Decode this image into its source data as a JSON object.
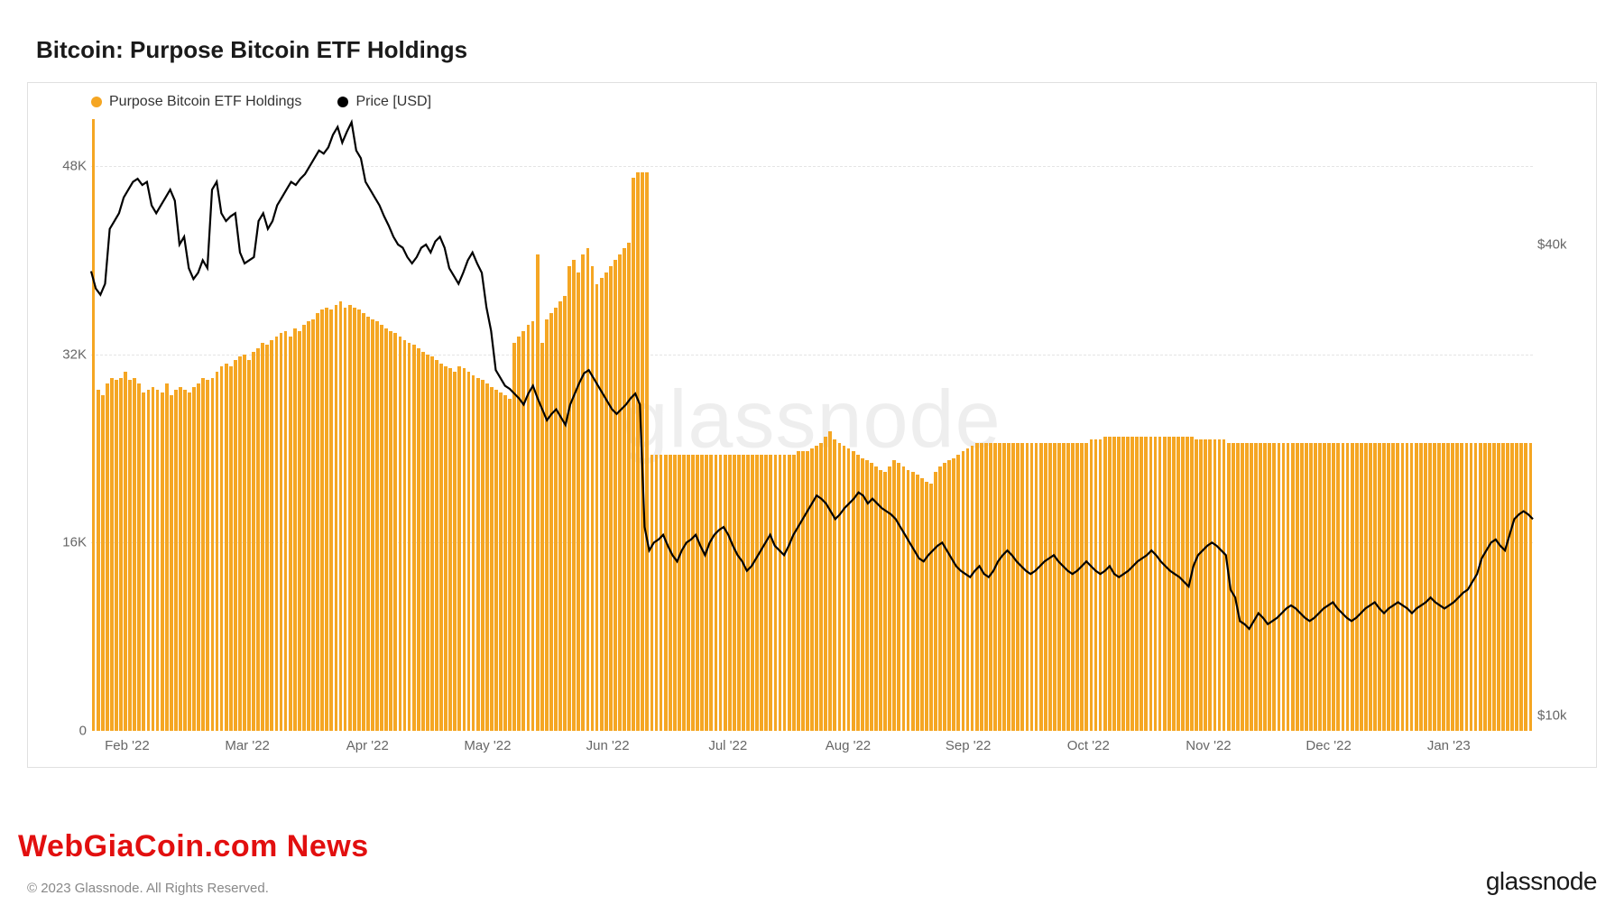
{
  "title": "Bitcoin: Purpose Bitcoin ETF Holdings",
  "legend": {
    "holdings": {
      "label": "Purpose Bitcoin ETF Holdings",
      "color": "#f5a623"
    },
    "price": {
      "label": "Price [USD]",
      "color": "#000000"
    }
  },
  "watermark": "glassnode",
  "overlay_news": "WebGiaCoin.com News",
  "copyright": "© 2023 Glassnode. All Rights Reserved.",
  "brand": "glassnode",
  "chart": {
    "type": "bar+line",
    "background_color": "#ffffff",
    "border_color": "#e0e0e0",
    "grid_color": "#e5e5e5",
    "bar_color": "#f5a623",
    "line_color": "#000000",
    "line_width": 2.2,
    "bar_gap_ratio": 0.25,
    "y_left": {
      "min": 0,
      "max": 52000,
      "ticks": [
        0,
        16000,
        32000,
        48000
      ],
      "tick_labels": [
        "0",
        "16K",
        "32K",
        "48K"
      ],
      "fontsize": 15,
      "color": "#666666"
    },
    "y_right": {
      "min": 9000,
      "max": 48000,
      "ticks": [
        10000,
        40000
      ],
      "tick_labels": [
        "$10k",
        "$40k"
      ],
      "fontsize": 15,
      "color": "#666666"
    },
    "x_labels": [
      "Feb '22",
      "Mar '22",
      "Apr '22",
      "May '22",
      "Jun '22",
      "Jul '22",
      "Aug '22",
      "Sep '22",
      "Oct '22",
      "Nov '22",
      "Dec '22",
      "Jan '23"
    ],
    "holdings": [
      52000,
      29000,
      28500,
      29500,
      30000,
      29800,
      30000,
      30500,
      29800,
      30000,
      29500,
      28800,
      29000,
      29200,
      29000,
      28800,
      29500,
      28500,
      29000,
      29200,
      29000,
      28800,
      29200,
      29500,
      30000,
      29800,
      30000,
      30500,
      31000,
      31200,
      31000,
      31500,
      31800,
      32000,
      31500,
      32200,
      32500,
      33000,
      32800,
      33200,
      33500,
      33800,
      34000,
      33500,
      34200,
      34000,
      34500,
      34800,
      35000,
      35500,
      35800,
      36000,
      35800,
      36200,
      36500,
      36000,
      36200,
      36000,
      35800,
      35500,
      35200,
      35000,
      34800,
      34500,
      34200,
      34000,
      33800,
      33500,
      33200,
      33000,
      32800,
      32500,
      32200,
      32000,
      31800,
      31500,
      31200,
      31000,
      30800,
      30500,
      31000,
      30800,
      30500,
      30200,
      30000,
      29800,
      29500,
      29200,
      29000,
      28800,
      28500,
      28200,
      33000,
      33500,
      34000,
      34500,
      34800,
      40500,
      33000,
      35000,
      35500,
      36000,
      36500,
      37000,
      39500,
      40000,
      39000,
      40500,
      41000,
      39500,
      38000,
      38500,
      39000,
      39500,
      40000,
      40500,
      41000,
      41500,
      47000,
      47500,
      47500,
      47500,
      23500,
      23500,
      23500,
      23500,
      23500,
      23500,
      23500,
      23500,
      23500,
      23500,
      23500,
      23500,
      23500,
      23500,
      23500,
      23500,
      23500,
      23500,
      23500,
      23500,
      23500,
      23500,
      23500,
      23500,
      23500,
      23500,
      23500,
      23500,
      23500,
      23500,
      23500,
      23500,
      23800,
      23800,
      23800,
      24000,
      24200,
      24500,
      25000,
      25500,
      24800,
      24500,
      24200,
      24000,
      23800,
      23500,
      23200,
      23000,
      22800,
      22500,
      22200,
      22000,
      22500,
      23000,
      22800,
      22500,
      22200,
      22000,
      21800,
      21500,
      21200,
      21000,
      22000,
      22500,
      22800,
      23000,
      23200,
      23500,
      23800,
      24000,
      24200,
      24500,
      24500,
      24500,
      24500,
      24500,
      24500,
      24500,
      24500,
      24500,
      24500,
      24500,
      24500,
      24500,
      24500,
      24500,
      24500,
      24500,
      24500,
      24500,
      24500,
      24500,
      24500,
      24500,
      24500,
      24500,
      24800,
      24800,
      24800,
      25000,
      25000,
      25000,
      25000,
      25000,
      25000,
      25000,
      25000,
      25000,
      25000,
      25000,
      25000,
      25000,
      25000,
      25000,
      25000,
      25000,
      25000,
      25000,
      25000,
      24800,
      24800,
      24800,
      24800,
      24800,
      24800,
      24800,
      24500,
      24500,
      24500,
      24500,
      24500,
      24500,
      24500,
      24500,
      24500,
      24500,
      24500,
      24500,
      24500,
      24500,
      24500,
      24500,
      24500,
      24500,
      24500,
      24500,
      24500,
      24500,
      24500,
      24500,
      24500,
      24500,
      24500,
      24500,
      24500,
      24500,
      24500,
      24500,
      24500,
      24500,
      24500,
      24500,
      24500,
      24500,
      24500,
      24500,
      24500,
      24500,
      24500,
      24500,
      24500,
      24500,
      24500,
      24500,
      24500,
      24500,
      24500,
      24500,
      24500,
      24500,
      24500,
      24500,
      24500,
      24500,
      24500,
      24500,
      24500,
      24500,
      24500,
      24500,
      24500,
      24500,
      24500
    ],
    "price": [
      38300,
      37200,
      36800,
      37500,
      41000,
      41500,
      42000,
      43000,
      43500,
      44000,
      44200,
      43800,
      44000,
      42500,
      42000,
      42500,
      43000,
      43500,
      42800,
      40000,
      40500,
      38500,
      37800,
      38200,
      39000,
      38500,
      43500,
      44000,
      42000,
      41500,
      41800,
      42000,
      39500,
      38800,
      39000,
      39200,
      41500,
      42000,
      41000,
      41500,
      42500,
      43000,
      43500,
      44000,
      43800,
      44200,
      44500,
      45000,
      45500,
      46000,
      45800,
      46200,
      47000,
      47500,
      46500,
      47200,
      47800,
      46000,
      45500,
      44000,
      43500,
      43000,
      42500,
      41800,
      41200,
      40500,
      40000,
      39800,
      39200,
      38800,
      39200,
      39800,
      40000,
      39500,
      40200,
      40500,
      39800,
      38500,
      38000,
      37500,
      38200,
      39000,
      39500,
      38800,
      38200,
      36000,
      34500,
      32000,
      31500,
      31000,
      30800,
      30500,
      30200,
      29800,
      30500,
      31000,
      30200,
      29500,
      28800,
      29200,
      29500,
      29000,
      28500,
      29800,
      30500,
      31200,
      31800,
      32000,
      31500,
      31000,
      30500,
      30000,
      29500,
      29200,
      29500,
      29800,
      30200,
      30500,
      29800,
      22000,
      20500,
      21000,
      21200,
      21500,
      20800,
      20200,
      19800,
      20500,
      21000,
      21200,
      21500,
      20800,
      20200,
      21000,
      21500,
      21800,
      22000,
      21500,
      20800,
      20200,
      19800,
      19200,
      19500,
      20000,
      20500,
      21000,
      21500,
      20800,
      20500,
      20200,
      20800,
      21500,
      22000,
      22500,
      23000,
      23500,
      24000,
      23800,
      23500,
      23000,
      22500,
      22800,
      23200,
      23500,
      23800,
      24200,
      24000,
      23500,
      23800,
      23500,
      23200,
      23000,
      22800,
      22500,
      22000,
      21500,
      21000,
      20500,
      20000,
      19800,
      20200,
      20500,
      20800,
      21000,
      20500,
      20000,
      19500,
      19200,
      19000,
      18800,
      19200,
      19500,
      19000,
      18800,
      19200,
      19800,
      20200,
      20500,
      20200,
      19800,
      19500,
      19200,
      19000,
      19200,
      19500,
      19800,
      20000,
      20200,
      19800,
      19500,
      19200,
      19000,
      19200,
      19500,
      19800,
      19500,
      19200,
      19000,
      19200,
      19500,
      19000,
      18800,
      19000,
      19200,
      19500,
      19800,
      20000,
      20200,
      20500,
      20200,
      19800,
      19500,
      19200,
      19000,
      18800,
      18500,
      18200,
      19500,
      20200,
      20500,
      20800,
      21000,
      20800,
      20500,
      20200,
      18000,
      17500,
      16000,
      15800,
      15500,
      16000,
      16500,
      16200,
      15800,
      16000,
      16200,
      16500,
      16800,
      17000,
      16800,
      16500,
      16200,
      16000,
      16200,
      16500,
      16800,
      17000,
      17200,
      16800,
      16500,
      16200,
      16000,
      16200,
      16500,
      16800,
      17000,
      17200,
      16800,
      16500,
      16800,
      17000,
      17200,
      17000,
      16800,
      16500,
      16800,
      17000,
      17200,
      17500,
      17200,
      17000,
      16800,
      17000,
      17200,
      17500,
      17800,
      18000,
      18500,
      19000,
      20000,
      20500,
      21000,
      21200,
      20800,
      20500,
      21500,
      22500,
      22800,
      23000,
      22800,
      22500
    ]
  }
}
